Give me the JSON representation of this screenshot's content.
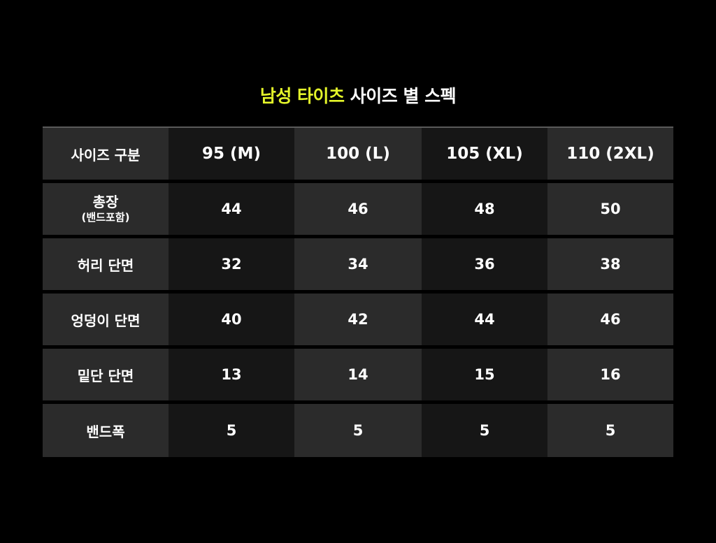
{
  "title": {
    "highlight": "남성 타이츠",
    "rest": " 사이즈 별 스펙",
    "highlight_color": "#e4f52a"
  },
  "table": {
    "header": [
      "사이즈 구분",
      "95 (M)",
      "100 (L)",
      "105 (XL)",
      "110 (2XL)"
    ],
    "rows": [
      {
        "label": "총장",
        "sublabel": "(밴드포함)",
        "values": [
          "44",
          "46",
          "48",
          "50"
        ]
      },
      {
        "label": "허리 단면",
        "values": [
          "32",
          "34",
          "36",
          "38"
        ]
      },
      {
        "label": "엉덩이 단면",
        "values": [
          "40",
          "42",
          "44",
          "46"
        ]
      },
      {
        "label": "밑단 단면",
        "values": [
          "13",
          "14",
          "15",
          "16"
        ]
      },
      {
        "label": "밴드폭",
        "values": [
          "5",
          "5",
          "5",
          "5"
        ]
      }
    ]
  }
}
